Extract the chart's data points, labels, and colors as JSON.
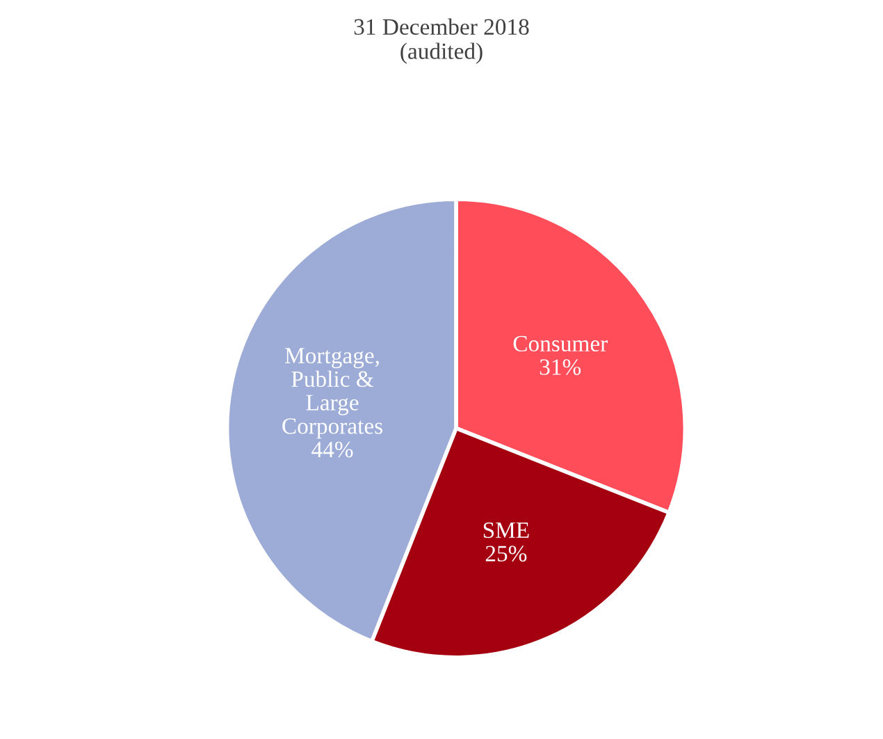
{
  "chart_data": {
    "type": "pie",
    "title": "31 December 2018\n(audited)",
    "categories": [
      "Consumer",
      "SME",
      "Mortgage,\nPublic &\nLarge\nCorporates"
    ],
    "values": [
      31,
      25,
      44
    ],
    "colors": [
      "#ff4d5a",
      "#a50010",
      "#9dacd6"
    ],
    "value_labels": [
      "31%",
      "25%",
      "44%"
    ]
  }
}
